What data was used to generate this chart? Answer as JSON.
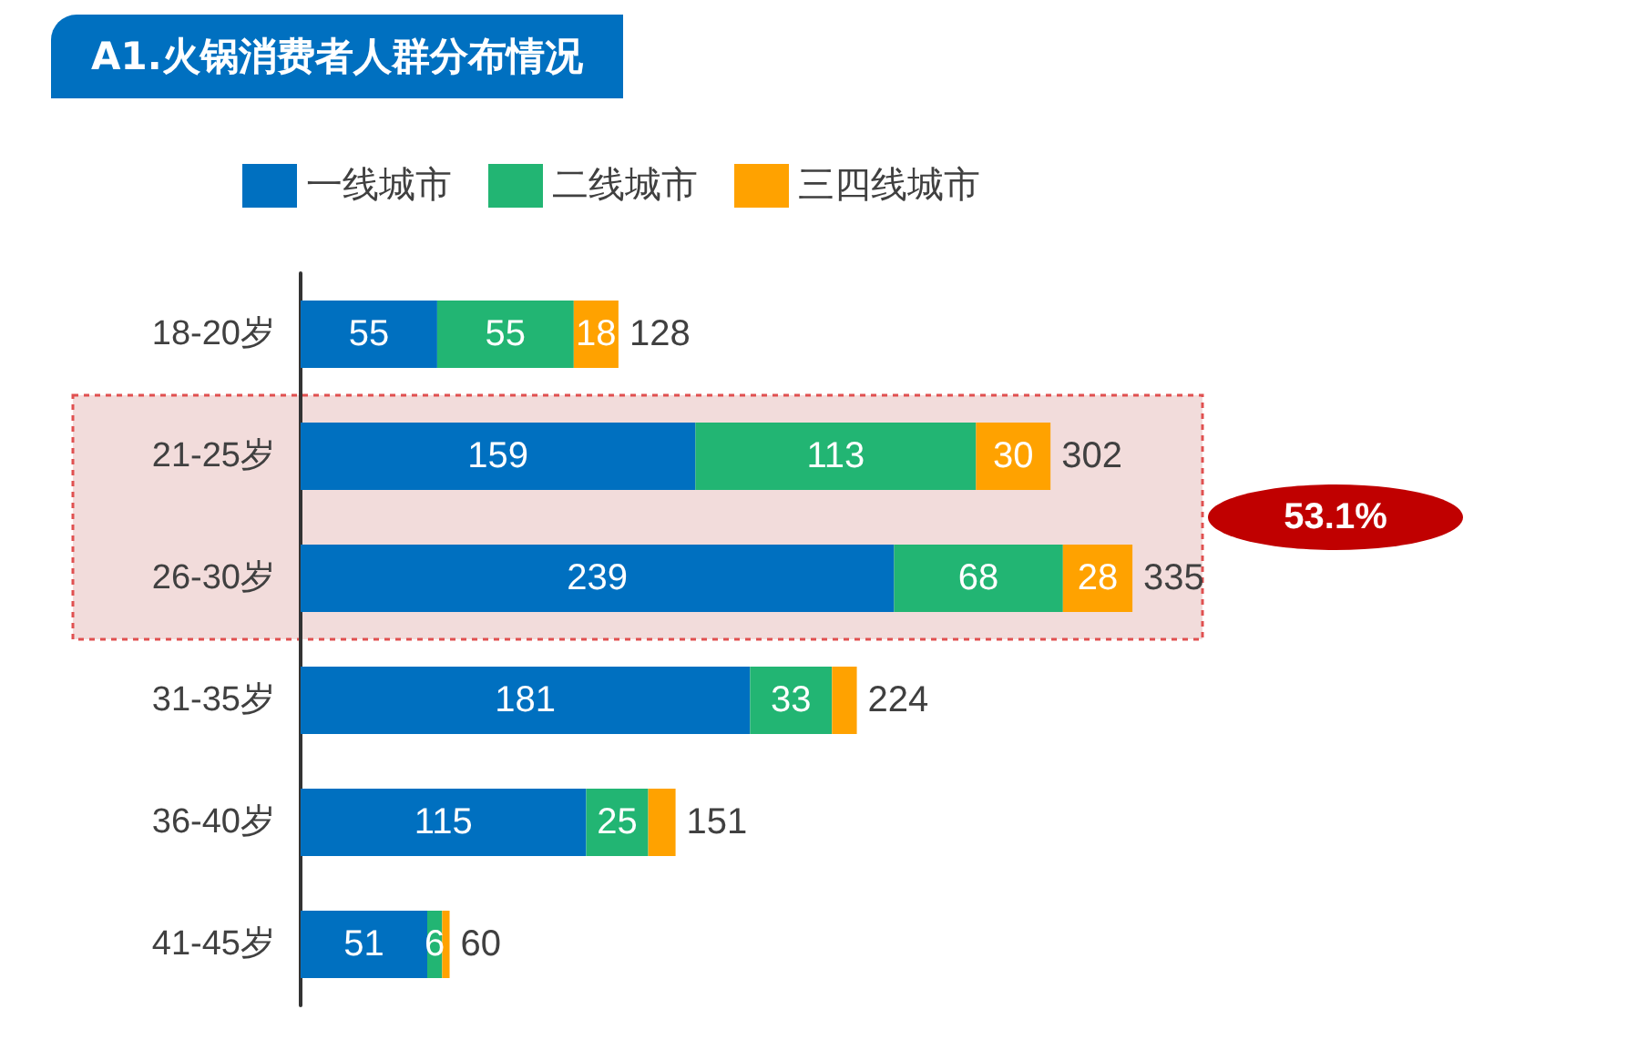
{
  "chart_data": {
    "type": "bar",
    "orientation": "horizontal",
    "stacked": true,
    "title": "A1.火锅消费者人群分布情况",
    "categories": [
      "18-20岁",
      "21-25岁",
      "26-30岁",
      "31-35岁",
      "36-40岁",
      "41-45岁"
    ],
    "series": [
      {
        "name": "一线城市",
        "color": "#0070c0",
        "values": [
          55,
          159,
          239,
          181,
          115,
          51
        ],
        "value_labels": [
          "55",
          "159",
          "239",
          "181",
          "115",
          "51"
        ]
      },
      {
        "name": "二线城市",
        "color": "#22b573",
        "values": [
          55,
          113,
          68,
          33,
          25,
          6
        ],
        "value_labels": [
          "55",
          "113",
          "68",
          "33",
          "25",
          "6"
        ]
      },
      {
        "name": "三四线城市",
        "color": "#ffa200",
        "values": [
          18,
          30,
          28,
          10,
          11,
          3
        ],
        "value_labels": [
          "18",
          "30",
          "28",
          null,
          null,
          null
        ]
      }
    ],
    "totals": [
      "128",
      "302",
      "335",
      "224",
      "151",
      "60"
    ],
    "bands": [
      {
        "axis": "y",
        "from": "21-25岁",
        "to": "26-30岁",
        "color": "#f2dcdb",
        "label": "53.1%"
      }
    ],
    "legend": "top"
  }
}
